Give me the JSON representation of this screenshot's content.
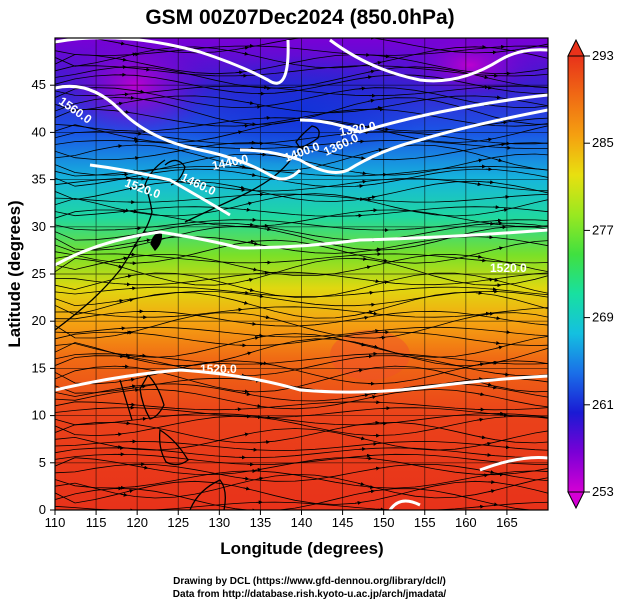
{
  "title": "GSM 00Z07Dec2024 (850.0hPa)",
  "xlabel": "Longitude (degrees)",
  "ylabel": "Latitude  (degrees)",
  "x_ticks": [
    "110",
    "115",
    "120",
    "125",
    "130",
    "135",
    "140",
    "145",
    "150",
    "155",
    "160",
    "165"
  ],
  "y_ticks": [
    "0",
    "5",
    "10",
    "15",
    "20",
    "25",
    "30",
    "35",
    "40",
    "45"
  ],
  "colorbar": {
    "ticks": [
      "293",
      "285",
      "277",
      "269",
      "261",
      "253"
    ],
    "min": 253,
    "max": 293,
    "colors": [
      "#d400d4",
      "#7a00d6",
      "#1a1ad4",
      "#1a6fe8",
      "#14c0e0",
      "#18e0a0",
      "#40e040",
      "#9ae820",
      "#e8e010",
      "#f5a010",
      "#f06a14",
      "#e8321a"
    ]
  },
  "contour_labels": {
    "c1560": "1560.0",
    "c1520a": "1520.0",
    "c1460": "1460.0",
    "c1440": "1440.0",
    "c1400": "1400.0",
    "c1360": "1360.0",
    "c1320": "1320.0",
    "c1520b": "1520.0",
    "c1520c": "1520.0"
  },
  "credits": {
    "line1": "Drawing by DCL (https://www.gfd-dennou.org/library/dcl/)",
    "line2": "Data from http://database.rish.kyoto-u.ac.jp/arch/jmadata/"
  },
  "chart_data": {
    "type": "heatmap",
    "title": "GSM 00Z07Dec2024 (850.0hPa)",
    "xlabel": "Longitude (degrees)",
    "ylabel": "Latitude  (degrees)",
    "xlim": [
      110,
      170
    ],
    "ylim": [
      0,
      50
    ],
    "color_range": [
      253,
      293
    ],
    "colorbar_ticks": [
      253,
      261,
      269,
      277,
      285,
      293
    ],
    "contour_labels": [
      1560,
      1520,
      1460,
      1440,
      1400,
      1360,
      1320,
      1520,
      1520
    ],
    "grid": true
  }
}
